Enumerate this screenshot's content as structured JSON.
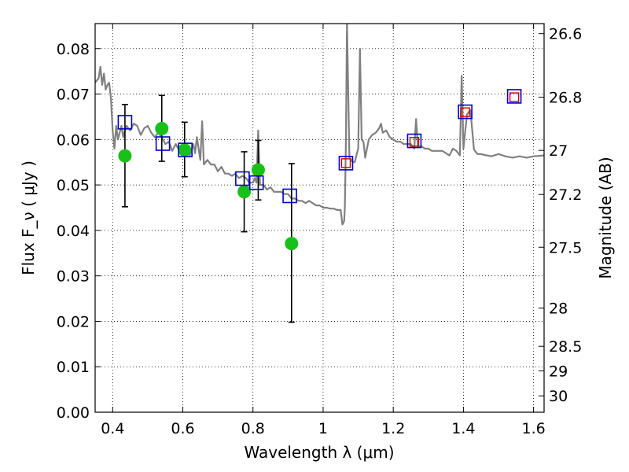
{
  "chart_data": {
    "type": "scatter",
    "xlabel": "Wavelength  λ (μm)",
    "ylabel": "Flux  F_ν  ( μJy )",
    "y2label": "Magnitude (AB)",
    "xlim": [
      0.35,
      1.63
    ],
    "ylim": [
      0.0,
      0.0855
    ],
    "grid": true,
    "x_ticks": [
      0.4,
      0.6,
      0.8,
      1.0,
      1.2,
      1.4,
      1.6
    ],
    "x_tick_labels": [
      "0.4",
      "0.6",
      "0.8",
      "1",
      "1.2",
      "1.4",
      "1.6"
    ],
    "y_ticks": [
      0.0,
      0.01,
      0.02,
      0.03,
      0.04,
      0.05,
      0.06,
      0.07,
      0.08
    ],
    "y_tick_labels": [
      "0.00",
      "0.01",
      "0.02",
      "0.03",
      "0.04",
      "0.05",
      "0.06",
      "0.07",
      "0.08"
    ],
    "mag_ticks": [
      {
        "label": "26.6",
        "flux": 0.0833
      },
      {
        "label": "26.8",
        "flux": 0.0693
      },
      {
        "label": "27",
        "flux": 0.0576
      },
      {
        "label": "27.2",
        "flux": 0.0479
      },
      {
        "label": "27.5",
        "flux": 0.0363
      },
      {
        "label": "28",
        "flux": 0.0229
      },
      {
        "label": "28.5",
        "flux": 0.0145
      },
      {
        "label": "29",
        "flux": 0.0091
      },
      {
        "label": "30",
        "flux": 0.0036
      }
    ],
    "series": [
      {
        "kind": "model_spectrum",
        "color": "#808080",
        "x": [
          0.35,
          0.36,
          0.365,
          0.37,
          0.375,
          0.38,
          0.385,
          0.39,
          0.395,
          0.4,
          0.405,
          0.41,
          0.415,
          0.42,
          0.425,
          0.43,
          0.435,
          0.44,
          0.45,
          0.46,
          0.47,
          0.48,
          0.49,
          0.5,
          0.51,
          0.52,
          0.53,
          0.54,
          0.55,
          0.56,
          0.57,
          0.58,
          0.59,
          0.6,
          0.61,
          0.62,
          0.63,
          0.635,
          0.64,
          0.645,
          0.65,
          0.655,
          0.66,
          0.67,
          0.68,
          0.69,
          0.7,
          0.71,
          0.72,
          0.73,
          0.74,
          0.75,
          0.76,
          0.77,
          0.78,
          0.79,
          0.8,
          0.805,
          0.81,
          0.815,
          0.82,
          0.83,
          0.84,
          0.85,
          0.86,
          0.87,
          0.88,
          0.89,
          0.9,
          0.91,
          0.92,
          0.93,
          0.94,
          0.95,
          0.96,
          0.97,
          0.98,
          0.99,
          1.0,
          1.01,
          1.02,
          1.03,
          1.04,
          1.05,
          1.055,
          1.06,
          1.062,
          1.065,
          1.068,
          1.075,
          1.08,
          1.085,
          1.09,
          1.1,
          1.105,
          1.11,
          1.115,
          1.12,
          1.13,
          1.14,
          1.15,
          1.16,
          1.165,
          1.17,
          1.18,
          1.19,
          1.2,
          1.21,
          1.22,
          1.23,
          1.24,
          1.25,
          1.26,
          1.265,
          1.27,
          1.28,
          1.29,
          1.3,
          1.31,
          1.32,
          1.33,
          1.34,
          1.35,
          1.36,
          1.37,
          1.38,
          1.39,
          1.395,
          1.4,
          1.41,
          1.42,
          1.43,
          1.44,
          1.45,
          1.46,
          1.48,
          1.5,
          1.52,
          1.54,
          1.56,
          1.58,
          1.6,
          1.63
        ],
        "y": [
          0.0725,
          0.0735,
          0.076,
          0.072,
          0.0745,
          0.071,
          0.072,
          0.0725,
          0.069,
          0.062,
          0.058,
          0.063,
          0.06,
          0.0615,
          0.063,
          0.0605,
          0.062,
          0.063,
          0.062,
          0.0635,
          0.063,
          0.061,
          0.0625,
          0.063,
          0.0615,
          0.0605,
          0.0615,
          0.0605,
          0.059,
          0.0595,
          0.0575,
          0.059,
          0.0575,
          0.0565,
          0.058,
          0.0565,
          0.059,
          0.057,
          0.0605,
          0.058,
          0.0555,
          0.064,
          0.0545,
          0.0555,
          0.0545,
          0.0545,
          0.053,
          0.054,
          0.0525,
          0.0525,
          0.052,
          0.0525,
          0.0515,
          0.052,
          0.0515,
          0.0505,
          0.0505,
          0.0515,
          0.0505,
          0.062,
          0.05,
          0.05,
          0.049,
          0.0495,
          0.0485,
          0.0485,
          0.0485,
          0.048,
          0.048,
          0.047,
          0.047,
          0.0465,
          0.0465,
          0.046,
          0.0465,
          0.046,
          0.0455,
          0.0455,
          0.045,
          0.045,
          0.0448,
          0.0448,
          0.0445,
          0.0445,
          0.0413,
          0.042,
          0.045,
          0.06,
          0.086,
          0.056,
          0.0555,
          0.055,
          0.055,
          0.058,
          0.08,
          0.06,
          0.0595,
          0.056,
          0.06,
          0.061,
          0.0615,
          0.0625,
          0.0635,
          0.0615,
          0.062,
          0.0605,
          0.06,
          0.0595,
          0.0595,
          0.059,
          0.059,
          0.059,
          0.058,
          0.0645,
          0.0585,
          0.0585,
          0.058,
          0.058,
          0.0575,
          0.0575,
          0.0575,
          0.0575,
          0.057,
          0.0565,
          0.058,
          0.0575,
          0.0565,
          0.074,
          0.058,
          0.0655,
          0.0665,
          0.0578,
          0.0568,
          0.0568,
          0.0566,
          0.0563,
          0.0568,
          0.0563,
          0.056,
          0.0563,
          0.056,
          0.0563,
          0.0565
        ]
      },
      {
        "kind": "observed_points",
        "color": "#1ac01a",
        "x": [
          0.435,
          0.54,
          0.605,
          0.775,
          0.815,
          0.91
        ],
        "y": [
          0.0564,
          0.0624,
          0.0577,
          0.0485,
          0.0533,
          0.0371
        ],
        "err_low": [
          0.0452,
          0.0552,
          0.0518,
          0.0397,
          0.0467,
          0.0198
        ],
        "err_high": [
          0.0677,
          0.0697,
          0.0638,
          0.0573,
          0.0598,
          0.0547
        ]
      },
      {
        "kind": "model_band_fluxes",
        "color": "#0000cc",
        "x": [
          0.435,
          0.543,
          0.607,
          0.77,
          0.81,
          0.905,
          1.065,
          1.26,
          1.405,
          1.545
        ],
        "y": [
          0.0638,
          0.0591,
          0.0577,
          0.0514,
          0.0505,
          0.0476,
          0.0548,
          0.0597,
          0.0661,
          0.0695
        ]
      },
      {
        "kind": "predicted_ir_fluxes",
        "color": "#cc0000",
        "x": [
          1.065,
          1.26,
          1.405,
          1.545
        ],
        "y": [
          0.0548,
          0.0595,
          0.066,
          0.0693
        ]
      }
    ]
  }
}
